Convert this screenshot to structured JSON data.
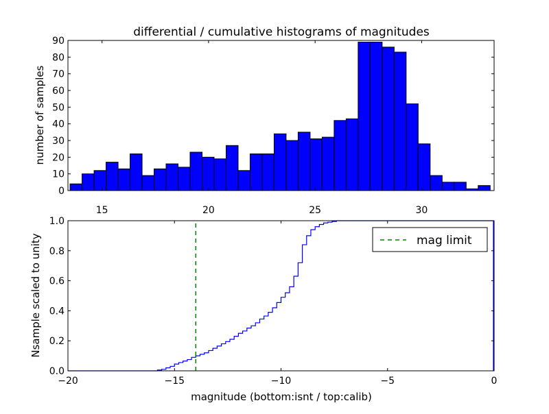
{
  "chart_data": [
    {
      "type": "bar",
      "title": "differential / cumulative histograms of magnitudes",
      "xlabel": "",
      "ylabel": "number of samples",
      "xlim": [
        13.4,
        33.4
      ],
      "ylim": [
        0,
        90
      ],
      "xticks": [
        "15",
        "20",
        "25",
        "30"
      ],
      "xtick_values": [
        15,
        20,
        25,
        30
      ],
      "yticks": [
        "0",
        "10",
        "20",
        "30",
        "40",
        "50",
        "60",
        "70",
        "80",
        "90"
      ],
      "ytick_values": [
        0,
        10,
        20,
        30,
        40,
        50,
        60,
        70,
        80,
        90
      ],
      "bin_start": 13.5,
      "bin_width": 0.5633,
      "values": [
        4,
        10,
        12,
        17,
        13,
        22,
        9,
        13,
        16,
        14,
        23,
        20,
        19,
        27,
        12,
        22,
        22,
        34,
        30,
        35,
        31,
        32,
        42,
        43,
        89,
        89,
        86,
        83,
        52,
        28,
        9,
        5,
        5,
        1,
        3
      ],
      "bar_color": "#0000ff",
      "grid": false
    },
    {
      "type": "line",
      "xlabel": "magnitude (bottom:isnt / top:calib)",
      "ylabel": "Nsample scaled to unity",
      "xlim": [
        -20,
        0
      ],
      "ylim": [
        0,
        1.0
      ],
      "xticks": [
        "−20",
        "−15",
        "−10",
        "−5",
        "0"
      ],
      "xtick_values": [
        -20,
        -15,
        -10,
        -5,
        0
      ],
      "yticks": [
        "0.0",
        "0.2",
        "0.4",
        "0.6",
        "0.8",
        "1.0"
      ],
      "ytick_values": [
        0,
        0.2,
        0.4,
        0.6,
        0.8,
        1.0
      ],
      "series": [
        {
          "style": "step",
          "color": "#0000ff",
          "x": [
            -20.0,
            -15.8,
            -15.6,
            -15.4,
            -15.2,
            -15.0,
            -14.8,
            -14.6,
            -14.4,
            -14.2,
            -14.0,
            -13.8,
            -13.6,
            -13.4,
            -13.2,
            -13.0,
            -12.8,
            -12.6,
            -12.4,
            -12.2,
            -12.0,
            -11.8,
            -11.6,
            -11.4,
            -11.2,
            -11.0,
            -10.8,
            -10.6,
            -10.4,
            -10.2,
            -10.0,
            -9.8,
            -9.6,
            -9.4,
            -9.2,
            -9.0,
            -8.8,
            -8.6,
            -8.4,
            -8.2,
            -8.0,
            -7.8,
            -7.6,
            -7.4,
            -7.0
          ],
          "y": [
            0.0,
            0.005,
            0.01,
            0.02,
            0.03,
            0.045,
            0.055,
            0.065,
            0.075,
            0.09,
            0.1,
            0.11,
            0.12,
            0.135,
            0.15,
            0.165,
            0.18,
            0.195,
            0.21,
            0.23,
            0.25,
            0.265,
            0.285,
            0.3,
            0.32,
            0.345,
            0.365,
            0.39,
            0.42,
            0.455,
            0.49,
            0.52,
            0.56,
            0.63,
            0.72,
            0.84,
            0.9,
            0.94,
            0.96,
            0.975,
            0.985,
            0.99,
            0.995,
            1.0,
            1.0
          ]
        },
        {
          "name": "mag limit",
          "style": "dashed-vertical",
          "color": "#008000",
          "x": [
            -14.0,
            -14.0
          ],
          "y": [
            0.0,
            1.0
          ]
        }
      ],
      "legend_position": "top-right",
      "grid": false
    }
  ]
}
